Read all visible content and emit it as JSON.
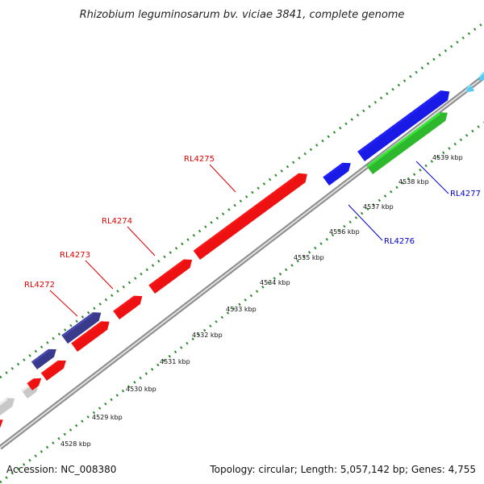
{
  "title": "Rhizobium leguminosarum bv. viciae 3841, complete genome",
  "footer": {
    "accession": "Accession: NC_008380",
    "summary": "Topology: circular; Length: 5,057,142 bp; Genes: 4,755"
  },
  "colors": {
    "backbone": "#8c8c8c",
    "tick_dots": "#2e8b2e",
    "red_gene": "#ee1111",
    "blue_gene": "#1a1ae6",
    "navy_gene": "#3a3a8c",
    "green_gene": "#2eb82e",
    "gray_gene": "#c8c8c8",
    "cyan_gene": "#5fc8f0",
    "red_label": "#dd0000",
    "blue_label": "#0000cc"
  },
  "kbp_labels": [
    "4528 kbp",
    "4529 kbp",
    "4530 kbp",
    "4531 kbp",
    "4532 kbp",
    "4533 kbp",
    "4534 kbp",
    "4535 kbp",
    "4536 kbp",
    "4537 kbp",
    "4538 kbp",
    "4539 kbp"
  ],
  "gene_labels": [
    {
      "name": "RL4272",
      "color": "red"
    },
    {
      "name": "RL4273",
      "color": "red"
    },
    {
      "name": "RL4274",
      "color": "red"
    },
    {
      "name": "RL4275",
      "color": "red"
    },
    {
      "name": "RL4276",
      "color": "blue"
    },
    {
      "name": "RL4277",
      "color": "blue"
    }
  ]
}
